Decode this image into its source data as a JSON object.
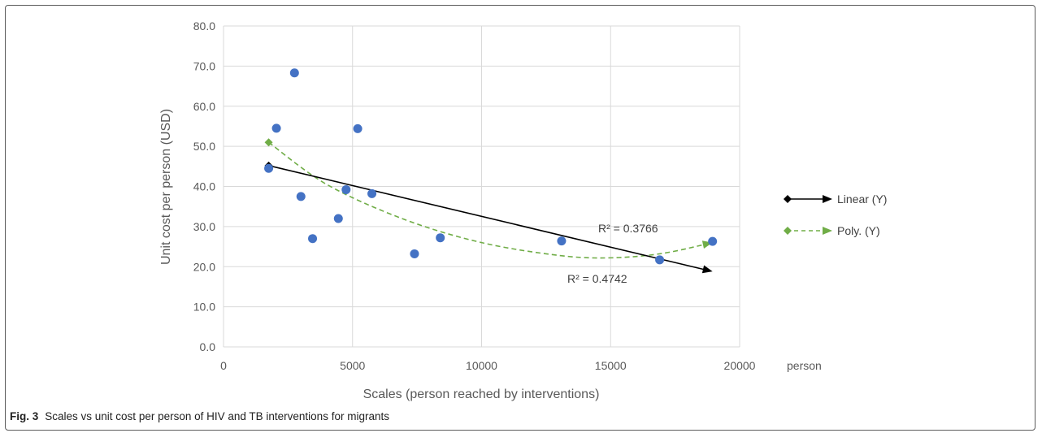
{
  "chart_data": {
    "type": "scatter",
    "xlabel": "Scales (person reached by interventions)",
    "ylabel": "Unit cost per person (USD)",
    "x_unit_label": "person",
    "xlim": [
      0,
      20000
    ],
    "ylim": [
      0,
      80
    ],
    "x_ticks": [
      "0",
      "5000",
      "10000",
      "15000",
      "20000"
    ],
    "y_ticks": [
      "0.0",
      "10.0",
      "20.0",
      "30.0",
      "40.0",
      "50.0",
      "60.0",
      "70.0",
      "80.0"
    ],
    "grid": true,
    "legend_position": "right",
    "points": [
      {
        "x": 1750,
        "y": 44.5
      },
      {
        "x": 2050,
        "y": 54.5
      },
      {
        "x": 2750,
        "y": 68.3
      },
      {
        "x": 3000,
        "y": 37.5
      },
      {
        "x": 3450,
        "y": 27.0
      },
      {
        "x": 4450,
        "y": 32.0
      },
      {
        "x": 4750,
        "y": 39.2
      },
      {
        "x": 5200,
        "y": 54.4
      },
      {
        "x": 5750,
        "y": 38.2
      },
      {
        "x": 7400,
        "y": 23.2
      },
      {
        "x": 8400,
        "y": 27.2
      },
      {
        "x": 13100,
        "y": 26.4
      },
      {
        "x": 16900,
        "y": 21.7
      },
      {
        "x": 18950,
        "y": 26.3
      }
    ],
    "trendlines": [
      {
        "name": "Linear (Y)",
        "kind": "linear",
        "color": "#000000",
        "x_start": 1750,
        "x_end": 18950,
        "y_start": 45.2,
        "y_end": 18.8,
        "r2_label": "R² = 0.4742"
      },
      {
        "name": "Poly. (Y)",
        "kind": "polynomial",
        "color": "#70ad47",
        "points": [
          [
            1750,
            51.0
          ],
          [
            4000,
            40.5
          ],
          [
            7000,
            31.8
          ],
          [
            10000,
            26.0
          ],
          [
            13000,
            22.8
          ],
          [
            15000,
            22.2
          ],
          [
            17000,
            23.3
          ],
          [
            18950,
            26.0
          ]
        ],
        "r2_label": "R² = 0.3766"
      }
    ],
    "point_color": "#4472c4"
  },
  "caption": {
    "label": "Fig. 3",
    "text": "Scales vs unit cost per person of HIV and TB interventions for migrants"
  }
}
